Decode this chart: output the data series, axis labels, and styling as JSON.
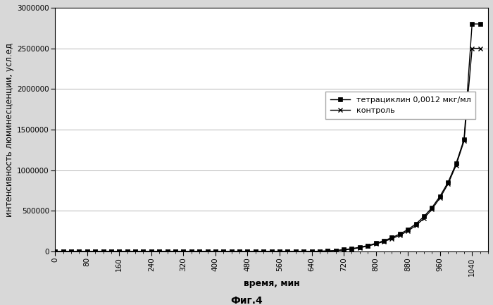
{
  "fig_label": "Фиг.4",
  "xlabel": "время, мин",
  "ylabel": "интенсивность люминесценции, усл.ед",
  "xlim": [
    0,
    1080
  ],
  "ylim": [
    0,
    3000000
  ],
  "xticks": [
    0,
    80,
    160,
    240,
    320,
    400,
    480,
    560,
    640,
    720,
    800,
    880,
    960,
    1040
  ],
  "yticks": [
    0,
    500000,
    1000000,
    1500000,
    2000000,
    2500000,
    3000000
  ],
  "ytick_labels": [
    "0",
    "500000",
    "1000000",
    "1500000",
    "2000000",
    "2500000",
    "3000000"
  ],
  "legend1_label": "тетрациклин 0,0012 мкг/мл",
  "legend2_label": "контроль",
  "line_color": "#000000",
  "background_color": "#d8d8d8",
  "plot_bg_color": "#ffffff",
  "grid_color": "#aaaaaa",
  "series1_x": [
    0,
    20,
    40,
    60,
    80,
    100,
    120,
    140,
    160,
    180,
    200,
    220,
    240,
    260,
    280,
    300,
    320,
    340,
    360,
    380,
    400,
    420,
    440,
    460,
    480,
    500,
    520,
    540,
    560,
    580,
    600,
    620,
    640,
    660,
    680,
    700,
    720,
    740,
    760,
    780,
    800,
    820,
    840,
    860,
    880,
    900,
    920,
    940,
    960,
    980,
    1000,
    1020,
    1040,
    1060
  ],
  "series1_y": [
    0,
    0,
    0,
    0,
    0,
    0,
    0,
    0,
    0,
    0,
    0,
    0,
    0,
    0,
    0,
    0,
    0,
    0,
    0,
    0,
    0,
    0,
    0,
    0,
    0,
    0,
    0,
    0,
    0,
    0,
    0,
    0,
    1000,
    3000,
    6000,
    12000,
    22000,
    35000,
    52000,
    73000,
    100000,
    132000,
    170000,
    215000,
    270000,
    340000,
    430000,
    540000,
    680000,
    850000,
    1080000,
    1380000,
    2800000,
    2800000
  ],
  "series2_x": [
    0,
    20,
    40,
    60,
    80,
    100,
    120,
    140,
    160,
    180,
    200,
    220,
    240,
    260,
    280,
    300,
    320,
    340,
    360,
    380,
    400,
    420,
    440,
    460,
    480,
    500,
    520,
    540,
    560,
    580,
    600,
    620,
    640,
    660,
    680,
    700,
    720,
    740,
    760,
    780,
    800,
    820,
    840,
    860,
    880,
    900,
    920,
    940,
    960,
    980,
    1000,
    1020,
    1040,
    1060
  ],
  "series2_y": [
    0,
    0,
    0,
    0,
    0,
    0,
    0,
    0,
    0,
    0,
    0,
    0,
    0,
    0,
    0,
    0,
    0,
    0,
    0,
    0,
    0,
    0,
    0,
    0,
    0,
    0,
    0,
    0,
    0,
    0,
    0,
    0,
    1000,
    2500,
    5000,
    10000,
    18000,
    30000,
    46000,
    66000,
    92000,
    122000,
    158000,
    200000,
    253000,
    320000,
    408000,
    520000,
    660000,
    830000,
    1060000,
    1360000,
    2500000,
    2500000
  ],
  "marker1_every": 2,
  "marker2_every": 2
}
